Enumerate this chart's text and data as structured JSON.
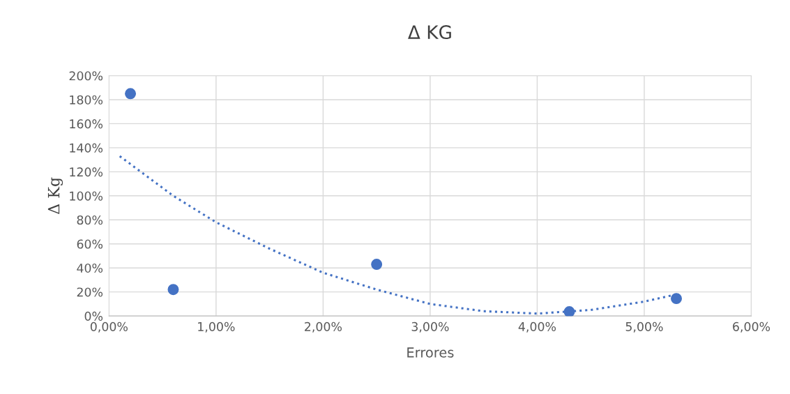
{
  "chart_data": {
    "type": "scatter",
    "title": "Δ KG",
    "xlabel": "Errores",
    "ylabel": "Δ Kg",
    "xlim": [
      0,
      6
    ],
    "ylim": [
      0,
      200
    ],
    "xticks": [
      {
        "value": 0,
        "label": "0,00%"
      },
      {
        "value": 1,
        "label": "1,00%"
      },
      {
        "value": 2,
        "label": "2,00%"
      },
      {
        "value": 3,
        "label": "3,00%"
      },
      {
        "value": 4,
        "label": "4,00%"
      },
      {
        "value": 5,
        "label": "5,00%"
      },
      {
        "value": 6,
        "label": "6,00%"
      }
    ],
    "yticks": [
      {
        "value": 0,
        "label": "0%"
      },
      {
        "value": 20,
        "label": "20%"
      },
      {
        "value": 40,
        "label": "40%"
      },
      {
        "value": 60,
        "label": "60%"
      },
      {
        "value": 80,
        "label": "80%"
      },
      {
        "value": 100,
        "label": "100%"
      },
      {
        "value": 120,
        "label": "120%"
      },
      {
        "value": 140,
        "label": "140%"
      },
      {
        "value": 160,
        "label": "160%"
      },
      {
        "value": 180,
        "label": "180%"
      },
      {
        "value": 200,
        "label": "200%"
      }
    ],
    "grid": true,
    "legend": false,
    "marker": "circle",
    "series": [
      {
        "color": "#4472c4",
        "x": [
          0.2,
          0.6,
          2.5,
          4.3,
          5.3
        ],
        "values": [
          185,
          22,
          43,
          3.5,
          14.5
        ]
      },
      {
        "type": "line",
        "color": "#4472c4",
        "line_style": "dotted",
        "marker": "none",
        "x": [
          0.1,
          0.6,
          1.0,
          1.5,
          2.0,
          2.5,
          3.0,
          3.5,
          4.0,
          4.5,
          5.0,
          5.3
        ],
        "values": [
          133,
          100,
          78,
          56,
          36,
          22,
          10,
          4,
          2,
          5,
          12,
          18
        ]
      }
    ]
  }
}
